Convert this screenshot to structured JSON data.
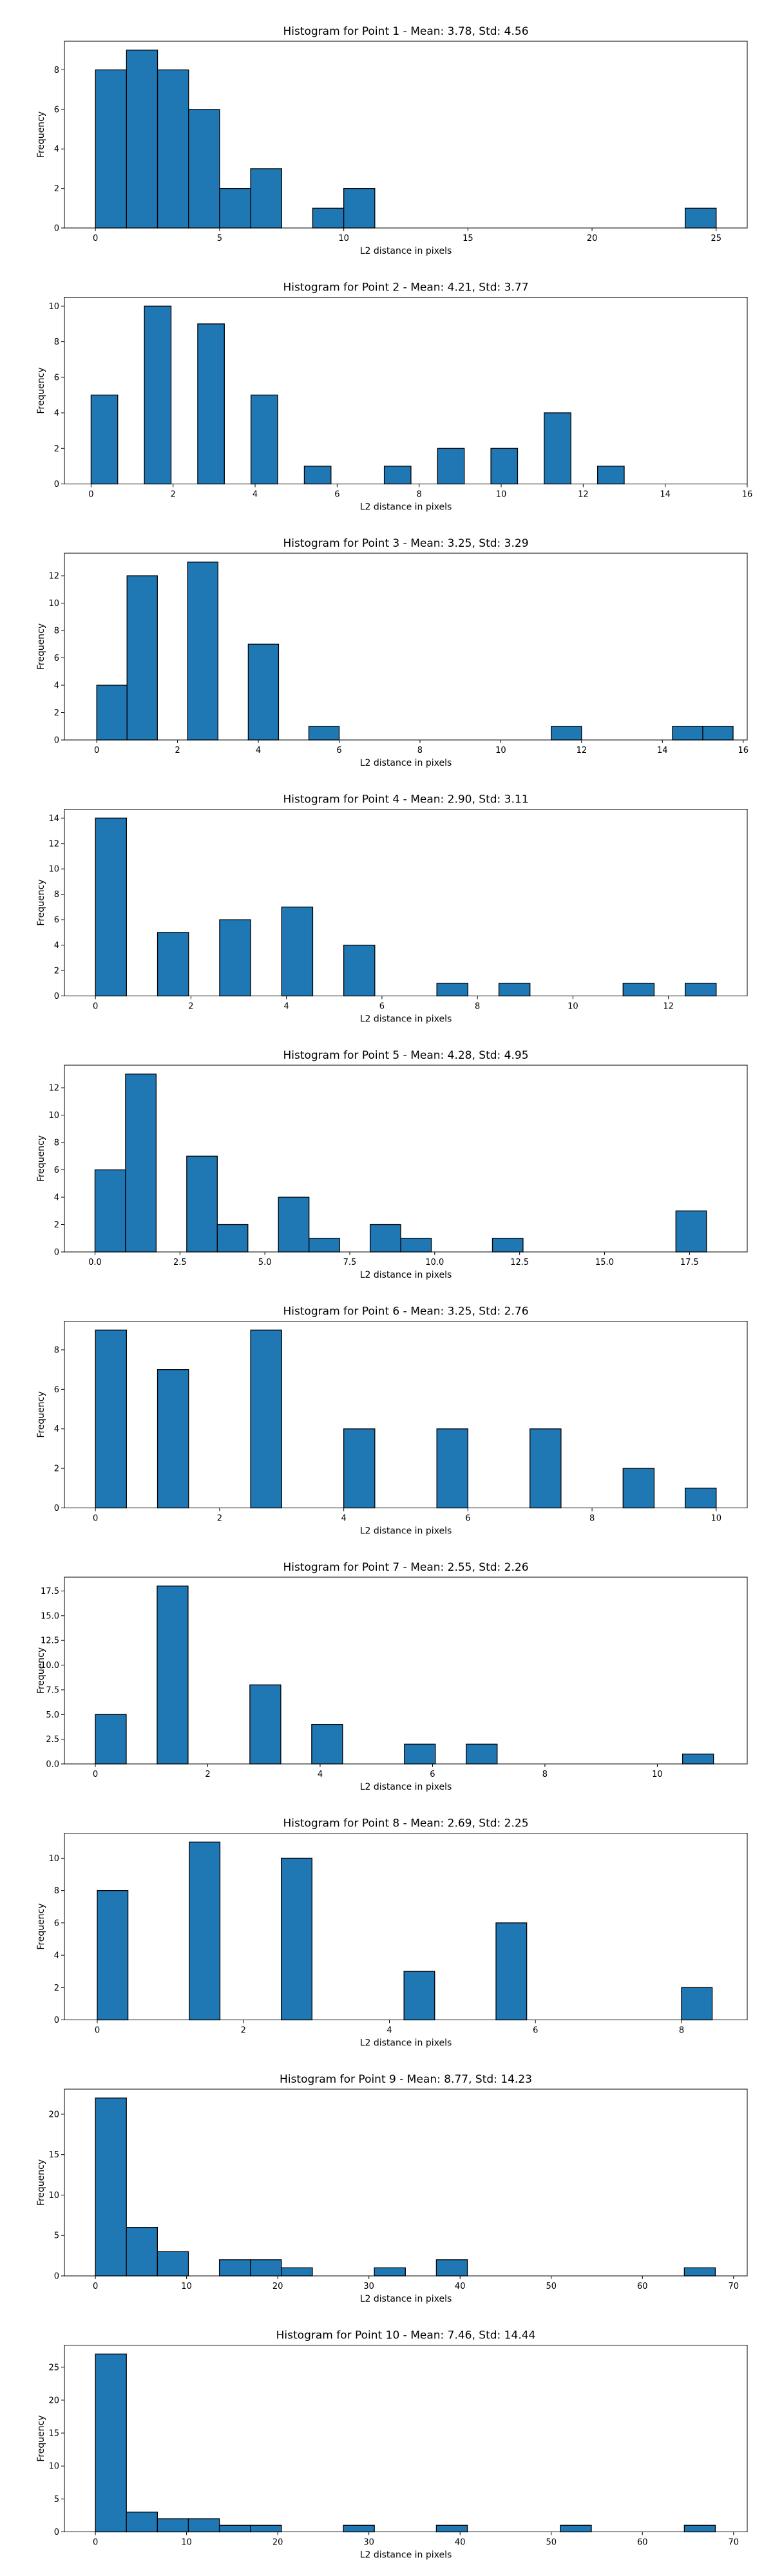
{
  "chart_data": [
    {
      "type": "bar",
      "title": "Histogram for Point 1 - Mean: 3.78, Std: 4.56",
      "xlabel": "L2 distance in pixels",
      "ylabel": "Frequency",
      "xlim": [
        -1.25,
        26.25
      ],
      "ylim": [
        0,
        9.45
      ],
      "xticks": [
        0,
        5,
        10,
        15,
        20,
        25
      ],
      "yticks": [
        0,
        2,
        4,
        6,
        8
      ],
      "bins": [
        {
          "x0": 0,
          "x1": 1.25,
          "count": 8
        },
        {
          "x0": 1.25,
          "x1": 2.5,
          "count": 9
        },
        {
          "x0": 2.5,
          "x1": 3.75,
          "count": 8
        },
        {
          "x0": 3.75,
          "x1": 5.0,
          "count": 6
        },
        {
          "x0": 5.0,
          "x1": 6.25,
          "count": 2
        },
        {
          "x0": 6.25,
          "x1": 7.5,
          "count": 3
        },
        {
          "x0": 8.75,
          "x1": 10.0,
          "count": 1
        },
        {
          "x0": 10.0,
          "x1": 11.25,
          "count": 2
        },
        {
          "x0": 23.75,
          "x1": 25.0,
          "count": 1
        }
      ],
      "grid": false
    },
    {
      "type": "bar",
      "title": "Histogram for Point 2 - Mean: 4.21, Std: 3.77",
      "xlabel": "L2 distance in pixels",
      "ylabel": "Frequency",
      "xlim": [
        -0.65,
        16.0
      ],
      "ylim": [
        0,
        10.5
      ],
      "xticks": [
        0,
        2,
        4,
        6,
        8,
        10,
        12,
        14,
        16
      ],
      "yticks": [
        0,
        2,
        4,
        6,
        8,
        10
      ],
      "bins": [
        {
          "x0": 0,
          "x1": 0.65,
          "count": 5
        },
        {
          "x0": 1.3,
          "x1": 1.95,
          "count": 10
        },
        {
          "x0": 2.6,
          "x1": 3.25,
          "count": 9
        },
        {
          "x0": 3.9,
          "x1": 4.55,
          "count": 5
        },
        {
          "x0": 5.2,
          "x1": 5.85,
          "count": 1
        },
        {
          "x0": 7.15,
          "x1": 7.8,
          "count": 1
        },
        {
          "x0": 8.45,
          "x1": 9.1,
          "count": 2
        },
        {
          "x0": 9.75,
          "x1": 10.4,
          "count": 2
        },
        {
          "x0": 11.05,
          "x1": 11.7,
          "count": 4
        },
        {
          "x0": 12.35,
          "x1": 13.0,
          "count": 1
        }
      ],
      "grid": false
    },
    {
      "type": "bar",
      "title": "Histogram for Point 3 - Mean: 3.25, Std: 3.29",
      "xlabel": "L2 distance in pixels",
      "ylabel": "Frequency",
      "xlim": [
        -0.8,
        16.1
      ],
      "ylim": [
        0,
        13.65
      ],
      "xticks": [
        0,
        2,
        4,
        6,
        8,
        10,
        12,
        14,
        16
      ],
      "yticks": [
        0,
        2,
        4,
        6,
        8,
        10,
        12
      ],
      "bins": [
        {
          "x0": 0,
          "x1": 0.75,
          "count": 4
        },
        {
          "x0": 0.75,
          "x1": 1.5,
          "count": 12
        },
        {
          "x0": 2.25,
          "x1": 3.0,
          "count": 13
        },
        {
          "x0": 3.75,
          "x1": 4.5,
          "count": 7
        },
        {
          "x0": 5.25,
          "x1": 6.0,
          "count": 1
        },
        {
          "x0": 11.25,
          "x1": 12.0,
          "count": 1
        },
        {
          "x0": 14.25,
          "x1": 15.0,
          "count": 1
        },
        {
          "x0": 15.0,
          "x1": 15.75,
          "count": 1
        }
      ],
      "grid": false
    },
    {
      "type": "bar",
      "title": "Histogram for Point 4 - Mean: 2.90, Std: 3.11",
      "xlabel": "L2 distance in pixels",
      "ylabel": "Frequency",
      "xlim": [
        -0.65,
        13.65
      ],
      "ylim": [
        0,
        14.7
      ],
      "xticks": [
        0,
        2,
        4,
        6,
        8,
        10,
        12
      ],
      "yticks": [
        0,
        2,
        4,
        6,
        8,
        10,
        12,
        14
      ],
      "bins": [
        {
          "x0": 0,
          "x1": 0.65,
          "count": 14
        },
        {
          "x0": 1.3,
          "x1": 1.95,
          "count": 5
        },
        {
          "x0": 2.6,
          "x1": 3.25,
          "count": 6
        },
        {
          "x0": 3.9,
          "x1": 4.55,
          "count": 7
        },
        {
          "x0": 5.2,
          "x1": 5.85,
          "count": 4
        },
        {
          "x0": 7.15,
          "x1": 7.8,
          "count": 1
        },
        {
          "x0": 8.45,
          "x1": 9.1,
          "count": 1
        },
        {
          "x0": 11.05,
          "x1": 11.7,
          "count": 1
        },
        {
          "x0": 12.35,
          "x1": 13.0,
          "count": 1
        }
      ],
      "grid": false
    },
    {
      "type": "bar",
      "title": "Histogram for Point 5 - Mean: 4.28, Std: 4.95",
      "xlabel": "L2 distance in pixels",
      "ylabel": "Frequency",
      "xlim": [
        -0.9,
        19.2
      ],
      "ylim": [
        0,
        13.65
      ],
      "xticks": [
        0.0,
        2.5,
        5.0,
        7.5,
        10.0,
        12.5,
        15.0,
        17.5
      ],
      "yticks": [
        0,
        2,
        4,
        6,
        8,
        10,
        12
      ],
      "bins": [
        {
          "x0": 0,
          "x1": 0.9,
          "count": 6
        },
        {
          "x0": 0.9,
          "x1": 1.8,
          "count": 13
        },
        {
          "x0": 2.7,
          "x1": 3.6,
          "count": 7
        },
        {
          "x0": 3.6,
          "x1": 4.5,
          "count": 2
        },
        {
          "x0": 5.4,
          "x1": 6.3,
          "count": 4
        },
        {
          "x0": 6.3,
          "x1": 7.2,
          "count": 1
        },
        {
          "x0": 8.1,
          "x1": 9.0,
          "count": 2
        },
        {
          "x0": 9.0,
          "x1": 9.9,
          "count": 1
        },
        {
          "x0": 11.7,
          "x1": 12.6,
          "count": 1
        },
        {
          "x0": 17.1,
          "x1": 18.0,
          "count": 3
        }
      ],
      "grid": false
    },
    {
      "type": "bar",
      "title": "Histogram for Point 6 - Mean: 3.25, Std: 2.76",
      "xlabel": "L2 distance in pixels",
      "ylabel": "Frequency",
      "xlim": [
        -0.5,
        10.5
      ],
      "ylim": [
        0,
        9.45
      ],
      "xticks": [
        0,
        2,
        4,
        6,
        8,
        10
      ],
      "yticks": [
        0,
        2,
        4,
        6,
        8
      ],
      "bins": [
        {
          "x0": 0,
          "x1": 0.5,
          "count": 9
        },
        {
          "x0": 1.0,
          "x1": 1.5,
          "count": 7
        },
        {
          "x0": 2.5,
          "x1": 3.0,
          "count": 9
        },
        {
          "x0": 4.0,
          "x1": 4.5,
          "count": 4
        },
        {
          "x0": 5.5,
          "x1": 6.0,
          "count": 4
        },
        {
          "x0": 7.0,
          "x1": 7.5,
          "count": 4
        },
        {
          "x0": 8.5,
          "x1": 9.0,
          "count": 2
        },
        {
          "x0": 9.5,
          "x1": 10.0,
          "count": 1
        }
      ],
      "grid": false
    },
    {
      "type": "bar",
      "title": "Histogram for Point 7 - Mean: 2.55, Std: 2.26",
      "xlabel": "L2 distance in pixels",
      "ylabel": "Frequency",
      "xlim": [
        -0.55,
        11.6
      ],
      "ylim": [
        0,
        18.9
      ],
      "xticks": [
        0,
        2,
        4,
        6,
        8,
        10
      ],
      "yticks": [
        0.0,
        2.5,
        5.0,
        7.5,
        10.0,
        12.5,
        15.0,
        17.5
      ],
      "bins": [
        {
          "x0": 0,
          "x1": 0.55,
          "count": 5
        },
        {
          "x0": 1.1,
          "x1": 1.65,
          "count": 18
        },
        {
          "x0": 2.75,
          "x1": 3.3,
          "count": 8
        },
        {
          "x0": 3.85,
          "x1": 4.4,
          "count": 4
        },
        {
          "x0": 5.5,
          "x1": 6.05,
          "count": 2
        },
        {
          "x0": 6.6,
          "x1": 7.15,
          "count": 2
        },
        {
          "x0": 10.45,
          "x1": 11.0,
          "count": 1
        }
      ],
      "grid": false
    },
    {
      "type": "bar",
      "title": "Histogram for Point 8 - Mean: 2.69, Std: 2.25",
      "xlabel": "L2 distance in pixels",
      "ylabel": "Frequency",
      "xlim": [
        -0.45,
        8.9
      ],
      "ylim": [
        0,
        11.55
      ],
      "xticks": [
        0,
        2,
        4,
        6,
        8
      ],
      "yticks": [
        0,
        2,
        4,
        6,
        8,
        10
      ],
      "bins": [
        {
          "x0": 0,
          "x1": 0.42,
          "count": 8
        },
        {
          "x0": 1.26,
          "x1": 1.68,
          "count": 11
        },
        {
          "x0": 2.52,
          "x1": 2.94,
          "count": 10
        },
        {
          "x0": 4.2,
          "x1": 4.62,
          "count": 3
        },
        {
          "x0": 5.46,
          "x1": 5.88,
          "count": 6
        },
        {
          "x0": 8.0,
          "x1": 8.42,
          "count": 2
        }
      ],
      "grid": false
    },
    {
      "type": "bar",
      "title": "Histogram for Point 9 - Mean: 8.77, Std: 14.23",
      "xlabel": "L2 distance in pixels",
      "ylabel": "Frequency",
      "xlim": [
        -3.4,
        71.5
      ],
      "ylim": [
        0,
        23.1
      ],
      "xticks": [
        0,
        10,
        20,
        30,
        40,
        50,
        60,
        70
      ],
      "yticks": [
        0,
        5,
        10,
        15,
        20
      ],
      "bins": [
        {
          "x0": 0,
          "x1": 3.4,
          "count": 22
        },
        {
          "x0": 3.4,
          "x1": 6.8,
          "count": 6
        },
        {
          "x0": 6.8,
          "x1": 10.2,
          "count": 3
        },
        {
          "x0": 13.6,
          "x1": 17.0,
          "count": 2
        },
        {
          "x0": 17.0,
          "x1": 20.4,
          "count": 2
        },
        {
          "x0": 20.4,
          "x1": 23.8,
          "count": 1
        },
        {
          "x0": 30.6,
          "x1": 34.0,
          "count": 1
        },
        {
          "x0": 37.4,
          "x1": 40.8,
          "count": 2
        },
        {
          "x0": 64.6,
          "x1": 68.0,
          "count": 1
        }
      ],
      "grid": false
    },
    {
      "type": "bar",
      "title": "Histogram for Point 10 - Mean: 7.46, Std: 14.44",
      "xlabel": "L2 distance in pixels",
      "ylabel": "Frequency",
      "xlim": [
        -3.4,
        71.5
      ],
      "ylim": [
        0,
        28.35
      ],
      "xticks": [
        0,
        10,
        20,
        30,
        40,
        50,
        60,
        70
      ],
      "yticks": [
        0,
        5,
        10,
        15,
        20,
        25
      ],
      "bins": [
        {
          "x0": 0,
          "x1": 3.4,
          "count": 27
        },
        {
          "x0": 3.4,
          "x1": 6.8,
          "count": 3
        },
        {
          "x0": 6.8,
          "x1": 10.2,
          "count": 2
        },
        {
          "x0": 10.2,
          "x1": 13.6,
          "count": 2
        },
        {
          "x0": 13.6,
          "x1": 17.0,
          "count": 1
        },
        {
          "x0": 17.0,
          "x1": 20.4,
          "count": 1
        },
        {
          "x0": 27.2,
          "x1": 30.6,
          "count": 1
        },
        {
          "x0": 37.4,
          "x1": 40.8,
          "count": 1
        },
        {
          "x0": 51.0,
          "x1": 54.4,
          "count": 1
        },
        {
          "x0": 64.6,
          "x1": 68.0,
          "count": 1
        }
      ],
      "grid": false
    }
  ]
}
